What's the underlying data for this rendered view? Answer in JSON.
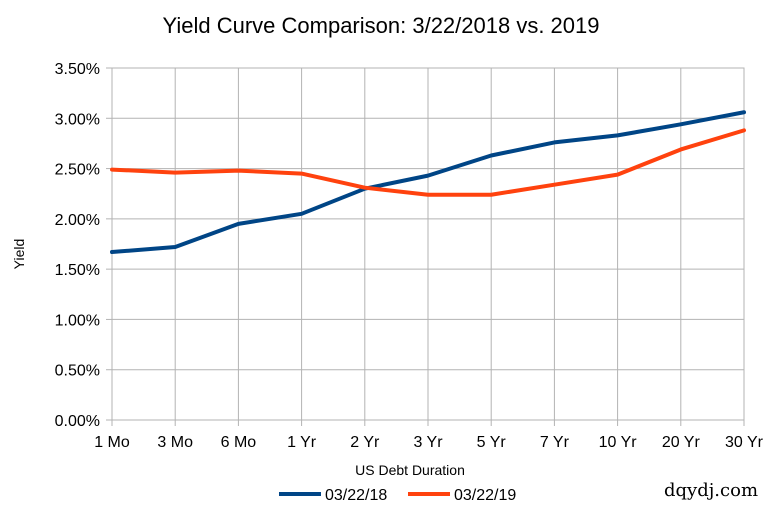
{
  "chart_data": {
    "type": "line",
    "title": "Yield Curve Comparison: 3/22/2018 vs. 2019",
    "xlabel": "US Debt Duration",
    "ylabel": "Yield",
    "categories": [
      "1 Mo",
      "3 Mo",
      "6 Mo",
      "1 Yr",
      "2 Yr",
      "3 Yr",
      "5 Yr",
      "7 Yr",
      "10 Yr",
      "20 Yr",
      "30 Yr"
    ],
    "ylim": [
      0,
      3.5
    ],
    "yticks": [
      "0.00%",
      "0.50%",
      "1.00%",
      "1.50%",
      "2.00%",
      "2.50%",
      "3.00%",
      "3.50%"
    ],
    "grid": true,
    "legend_position": "bottom",
    "series": [
      {
        "name": "03/22/18",
        "color": "#004586",
        "values": [
          1.67,
          1.72,
          1.95,
          2.05,
          2.3,
          2.43,
          2.63,
          2.76,
          2.83,
          2.94,
          3.06
        ]
      },
      {
        "name": "03/22/19",
        "color": "#ff420e",
        "values": [
          2.49,
          2.46,
          2.48,
          2.45,
          2.31,
          2.24,
          2.24,
          2.34,
          2.44,
          2.69,
          2.88
        ]
      }
    ]
  },
  "watermark": "dqydj.com"
}
